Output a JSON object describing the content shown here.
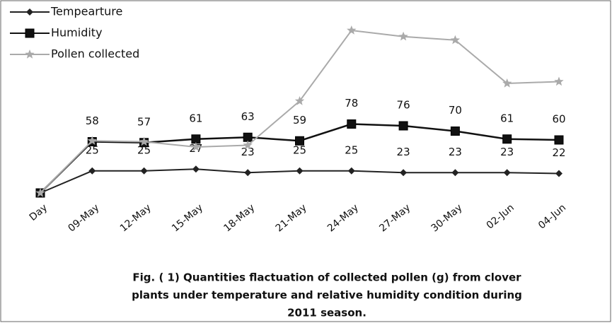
{
  "chart_data": {
    "type": "line",
    "caption": [
      "Fig. ( 1)    Quantities flactuation of collected pollen (g)  from clover",
      "plants under temperature and relative humidity condition during",
      "2011 season."
    ],
    "categories": [
      "Day",
      "09-May",
      "12-May",
      "15-May",
      "18-May",
      "21-May",
      "24-May",
      "27-May",
      "30-May",
      "02-Jun",
      "04-Jun"
    ],
    "ylim": [
      0,
      200
    ],
    "legend": "top-left",
    "series": [
      {
        "name": "Tempearture",
        "color": "#222222",
        "marker": "diamond",
        "values": [
          0,
          25,
          25,
          27,
          23,
          25,
          25,
          23,
          23,
          23,
          22
        ],
        "value_labels": [
          null,
          "25",
          "25",
          "27",
          "23",
          "25",
          "25",
          "23",
          "23",
          "23",
          "22"
        ]
      },
      {
        "name": "Humidity",
        "color": "#111111",
        "marker": "square",
        "values": [
          0,
          58,
          57,
          61,
          63,
          59,
          78,
          76,
          70,
          61,
          60
        ],
        "value_labels": [
          null,
          "58",
          "57",
          "61",
          "63",
          "59",
          "78",
          "76",
          "70",
          "61",
          "60"
        ]
      },
      {
        "name": "Pollen collected",
        "color": "#aaaaaa",
        "marker": "star",
        "values": [
          0,
          59,
          58,
          52,
          54,
          104,
          184,
          177,
          173,
          124,
          126
        ]
      }
    ]
  }
}
